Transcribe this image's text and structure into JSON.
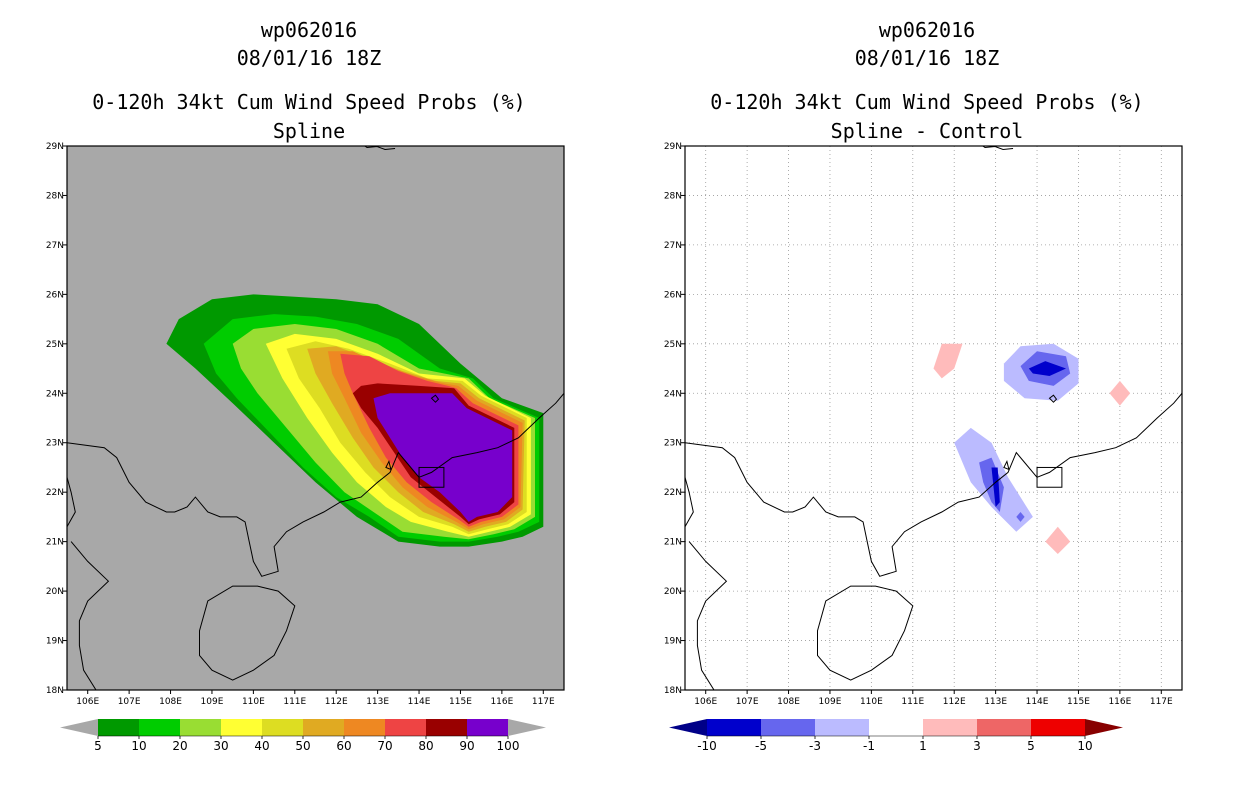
{
  "chart_data": [
    {
      "type": "heatmap",
      "storm_id": "wp062016",
      "datetime": "08/01/16 18Z",
      "title": "0-120h 34kt Cum Wind Speed Probs (%)",
      "subtitle": "Spline",
      "lon_range": [
        105.5,
        117.5
      ],
      "lat_range": [
        18,
        29
      ],
      "x_ticks": [
        "106E",
        "107E",
        "108E",
        "109E",
        "110E",
        "111E",
        "112E",
        "113E",
        "114E",
        "115E",
        "116E",
        "117E"
      ],
      "y_ticks": [
        "18N",
        "19N",
        "20N",
        "21N",
        "22N",
        "23N",
        "24N",
        "25N",
        "26N",
        "27N",
        "28N",
        "29N"
      ],
      "grid": false,
      "background": "#a8a8a8",
      "colorbar": {
        "labels": [
          "5",
          "10",
          "20",
          "30",
          "40",
          "50",
          "60",
          "70",
          "80",
          "90",
          "100"
        ],
        "colors": [
          "#009900",
          "#00cc00",
          "#99dd33",
          "#ffff33",
          "#dddd22",
          "#e0aa22",
          "#ee8822",
          "#ee4444",
          "#990000",
          "#7700cc"
        ],
        "under_color": "#a8a8a8",
        "over_color": "#a8a8a8"
      },
      "contour_levels": [
        5,
        10,
        20,
        30,
        40,
        50,
        60,
        70,
        80,
        90,
        100
      ]
    },
    {
      "type": "heatmap",
      "storm_id": "wp062016",
      "datetime": "08/01/16 18Z",
      "title": "0-120h 34kt Cum Wind Speed Probs (%)",
      "subtitle": "Spline - Control",
      "lon_range": [
        105.5,
        117.5
      ],
      "lat_range": [
        18,
        29
      ],
      "x_ticks": [
        "106E",
        "107E",
        "108E",
        "109E",
        "110E",
        "111E",
        "112E",
        "113E",
        "114E",
        "115E",
        "116E",
        "117E"
      ],
      "y_ticks": [
        "18N",
        "19N",
        "20N",
        "21N",
        "22N",
        "23N",
        "24N",
        "25N",
        "26N",
        "27N",
        "28N",
        "29N"
      ],
      "grid": true,
      "background": "#ffffff",
      "colorbar": {
        "labels": [
          "-10",
          "-5",
          "-3",
          "-1",
          "1",
          "3",
          "5",
          "10"
        ],
        "colors": [
          "#0000cc",
          "#6666ee",
          "#bbbbff",
          "#ffffff",
          "#ffbbbb",
          "#ee6666",
          "#ee0000"
        ],
        "under_color": "#000088",
        "over_color": "#880000"
      },
      "difference_features": [
        {
          "sign": "negative",
          "lon": 114.0,
          "lat": 24.5,
          "min_value": -5
        },
        {
          "sign": "negative",
          "lon": 113.0,
          "lat": 22.2,
          "min_value": -5
        },
        {
          "sign": "positive",
          "lon": 111.8,
          "lat": 24.7,
          "max_value": 1
        },
        {
          "sign": "positive",
          "lon": 116.0,
          "lat": 24.0,
          "max_value": 1
        },
        {
          "sign": "positive",
          "lon": 114.5,
          "lat": 21.0,
          "max_value": 1
        }
      ]
    }
  ]
}
